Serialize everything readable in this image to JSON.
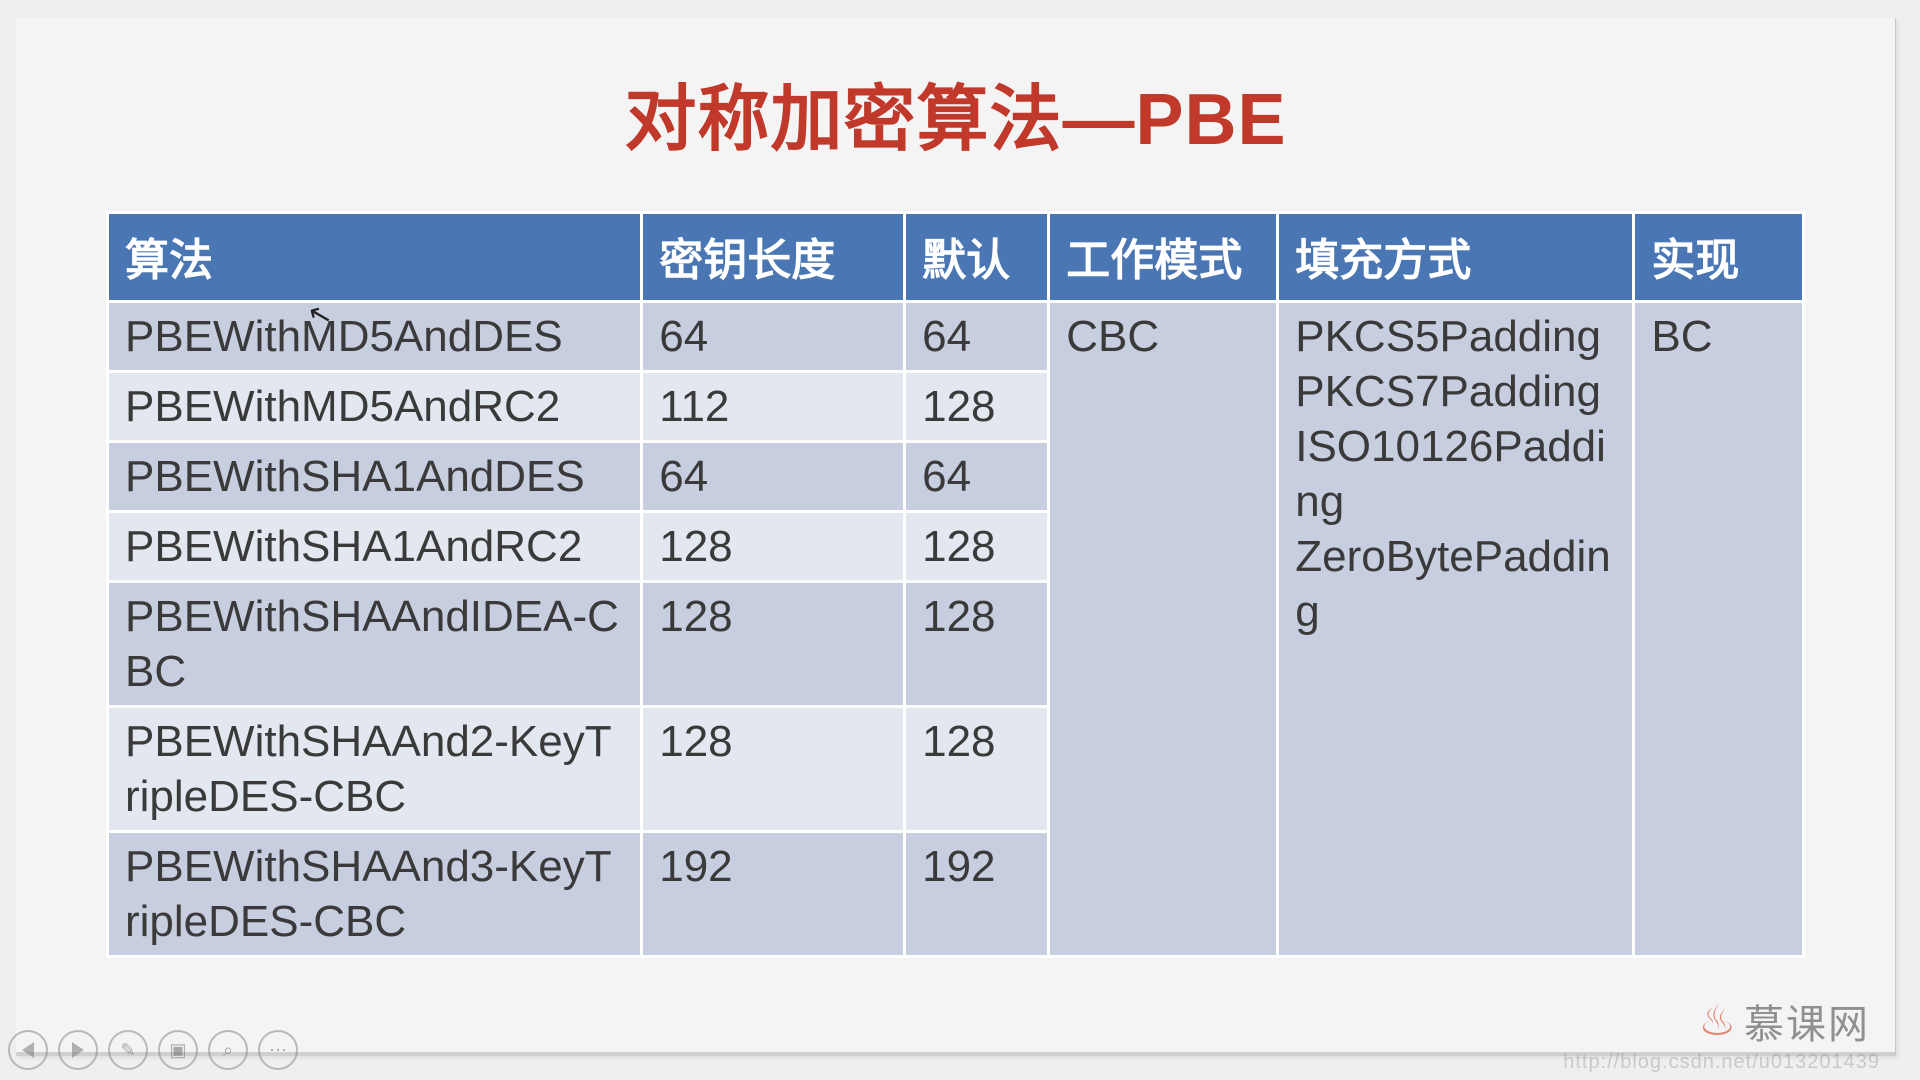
{
  "title": "对称加密算法—PBE",
  "colors": {
    "title": "#c0392b",
    "header_bg": "#4a77b4",
    "header_fg": "#ffffff",
    "row_dark": "#c7cee0",
    "row_light": "#e3e7ef",
    "cell_text": "#3a3a3a",
    "page_bg": "#efefef",
    "slide_bg": "#f4f4f4",
    "logo_flame": "#d64a2c",
    "logo_text_color": "#5b5b5b"
  },
  "table": {
    "type": "table",
    "title_fontsize": 72,
    "header_fontsize": 44,
    "cell_fontsize": 44,
    "col_widths_pct": [
      31.5,
      15.5,
      8.5,
      13.5,
      21,
      10
    ],
    "columns": [
      "算法",
      "密钥长度",
      "默认",
      "工作模式",
      "填充方式",
      "实现"
    ],
    "rows": [
      {
        "algo": "PBEWithMD5AndDES",
        "keylen": "64",
        "def": "64"
      },
      {
        "algo": "PBEWithMD5AndRC2",
        "keylen": "112",
        "def": "128"
      },
      {
        "algo": "PBEWithSHA1AndDES",
        "keylen": "64",
        "def": "64"
      },
      {
        "algo": "PBEWithSHA1AndRC2",
        "keylen": "128",
        "def": "128"
      },
      {
        "algo": "PBEWithSHAAndIDEA-CBC",
        "keylen": "128",
        "def": "128"
      },
      {
        "algo": "PBEWithSHAAnd2-KeyTripleDES-CBC",
        "keylen": "128",
        "def": "128"
      },
      {
        "algo": "PBEWithSHAAnd3-KeyTripleDES-CBC",
        "keylen": "192",
        "def": "192"
      }
    ],
    "merged": {
      "mode": "CBC",
      "padding_lines": [
        "PKCS5Padding",
        "PKCS7Padding",
        "ISO10126Padding",
        "ZeroBytePadding"
      ],
      "impl": "BC"
    }
  },
  "logo_text": "慕课网",
  "watermark": "http://blog.csdn.net/u013201439",
  "nav_icons": [
    "prev",
    "next",
    "pen",
    "layers",
    "zoom",
    "more"
  ]
}
